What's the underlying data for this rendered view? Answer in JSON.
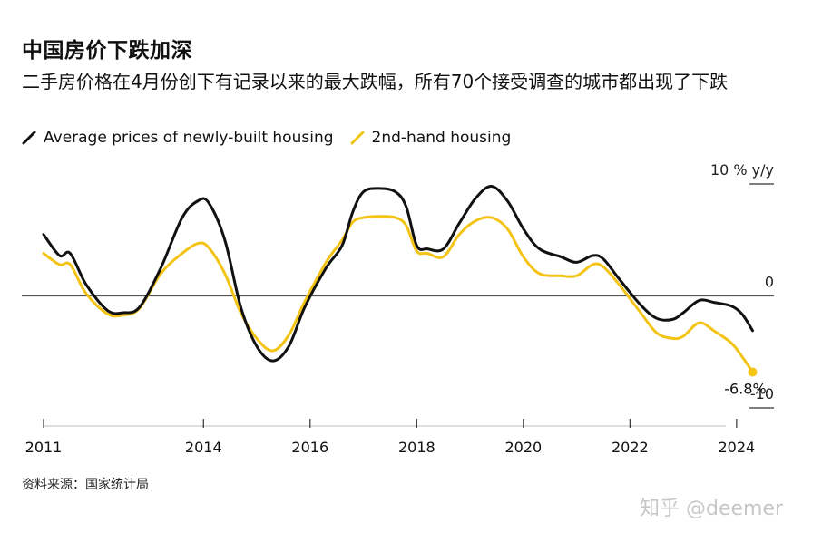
{
  "title": "中国房价下跌加深",
  "subtitle": "二手房价格在4月份创下有记录以来的最大跌幅，所有70个接受调查的城市都出现了下跌",
  "source": "资料来源：国家统计局",
  "watermark": "知乎 @deemer",
  "chart_data": {
    "type": "line",
    "title": "中国房价下跌加深",
    "ylabel": "10 % y/y",
    "ylim": [
      -10,
      10
    ],
    "xlim": [
      2011,
      2024.7
    ],
    "x_ticks": [
      2011,
      2014,
      2016,
      2018,
      2020,
      2022,
      2024
    ],
    "y_ticks": [
      {
        "value": 10,
        "label": "10 % y/y"
      },
      {
        "value": 0,
        "label": "0"
      },
      {
        "value": -10,
        "label": "-10"
      }
    ],
    "zero_line": true,
    "legend_position": "top-left",
    "series": [
      {
        "name": "Average prices of newly-built housing",
        "color": "#111111",
        "points": [
          [
            2011.0,
            5.5
          ],
          [
            2011.3,
            3.6
          ],
          [
            2011.5,
            3.8
          ],
          [
            2011.8,
            1.0
          ],
          [
            2012.2,
            -1.3
          ],
          [
            2012.5,
            -1.5
          ],
          [
            2012.8,
            -1.0
          ],
          [
            2013.2,
            2.5
          ],
          [
            2013.6,
            7.0
          ],
          [
            2013.9,
            8.5
          ],
          [
            2014.1,
            8.3
          ],
          [
            2014.4,
            5.0
          ],
          [
            2014.7,
            -1.0
          ],
          [
            2015.0,
            -4.5
          ],
          [
            2015.3,
            -5.8
          ],
          [
            2015.6,
            -4.5
          ],
          [
            2015.9,
            -1.0
          ],
          [
            2016.3,
            2.5
          ],
          [
            2016.6,
            4.5
          ],
          [
            2016.8,
            7.5
          ],
          [
            2017.0,
            9.3
          ],
          [
            2017.3,
            9.6
          ],
          [
            2017.6,
            9.3
          ],
          [
            2017.8,
            8.0
          ],
          [
            2018.0,
            4.5
          ],
          [
            2018.2,
            4.2
          ],
          [
            2018.5,
            4.2
          ],
          [
            2018.8,
            6.5
          ],
          [
            2019.1,
            8.7
          ],
          [
            2019.4,
            9.8
          ],
          [
            2019.7,
            8.5
          ],
          [
            2020.0,
            6.0
          ],
          [
            2020.3,
            4.2
          ],
          [
            2020.7,
            3.5
          ],
          [
            2021.0,
            3.0
          ],
          [
            2021.3,
            3.6
          ],
          [
            2021.5,
            3.3
          ],
          [
            2021.8,
            1.5
          ],
          [
            2022.2,
            -0.8
          ],
          [
            2022.5,
            -2.0
          ],
          [
            2022.8,
            -2.1
          ],
          [
            2023.0,
            -1.5
          ],
          [
            2023.3,
            -0.4
          ],
          [
            2023.6,
            -0.6
          ],
          [
            2023.9,
            -0.9
          ],
          [
            2024.1,
            -1.6
          ],
          [
            2024.3,
            -3.1
          ]
        ]
      },
      {
        "name": "2nd-hand housing",
        "color": "#f3c316",
        "points": [
          [
            2011.0,
            3.8
          ],
          [
            2011.3,
            2.8
          ],
          [
            2011.5,
            2.8
          ],
          [
            2011.8,
            0.2
          ],
          [
            2012.2,
            -1.6
          ],
          [
            2012.5,
            -1.7
          ],
          [
            2012.8,
            -1.1
          ],
          [
            2013.2,
            2.0
          ],
          [
            2013.6,
            3.8
          ],
          [
            2013.9,
            4.7
          ],
          [
            2014.1,
            4.3
          ],
          [
            2014.4,
            2.0
          ],
          [
            2014.7,
            -1.5
          ],
          [
            2015.0,
            -3.8
          ],
          [
            2015.3,
            -4.9
          ],
          [
            2015.6,
            -3.5
          ],
          [
            2015.9,
            -0.5
          ],
          [
            2016.3,
            3.0
          ],
          [
            2016.6,
            5.0
          ],
          [
            2016.8,
            6.6
          ],
          [
            2017.0,
            7.0
          ],
          [
            2017.3,
            7.1
          ],
          [
            2017.6,
            7.0
          ],
          [
            2017.8,
            6.3
          ],
          [
            2018.0,
            4.0
          ],
          [
            2018.2,
            3.8
          ],
          [
            2018.5,
            3.5
          ],
          [
            2018.8,
            5.5
          ],
          [
            2019.1,
            6.7
          ],
          [
            2019.4,
            7.0
          ],
          [
            2019.7,
            6.0
          ],
          [
            2020.0,
            3.5
          ],
          [
            2020.3,
            2.0
          ],
          [
            2020.7,
            1.8
          ],
          [
            2021.0,
            1.8
          ],
          [
            2021.3,
            2.8
          ],
          [
            2021.5,
            2.6
          ],
          [
            2021.8,
            1.0
          ],
          [
            2022.2,
            -1.5
          ],
          [
            2022.5,
            -3.3
          ],
          [
            2022.8,
            -3.8
          ],
          [
            2023.0,
            -3.6
          ],
          [
            2023.3,
            -2.4
          ],
          [
            2023.6,
            -3.2
          ],
          [
            2023.9,
            -4.2
          ],
          [
            2024.1,
            -5.4
          ],
          [
            2024.3,
            -6.8
          ]
        ]
      }
    ],
    "annotation": {
      "text": "-6.8%",
      "series": "2nd-hand housing",
      "x": 2024.3,
      "y": -6.8
    }
  }
}
